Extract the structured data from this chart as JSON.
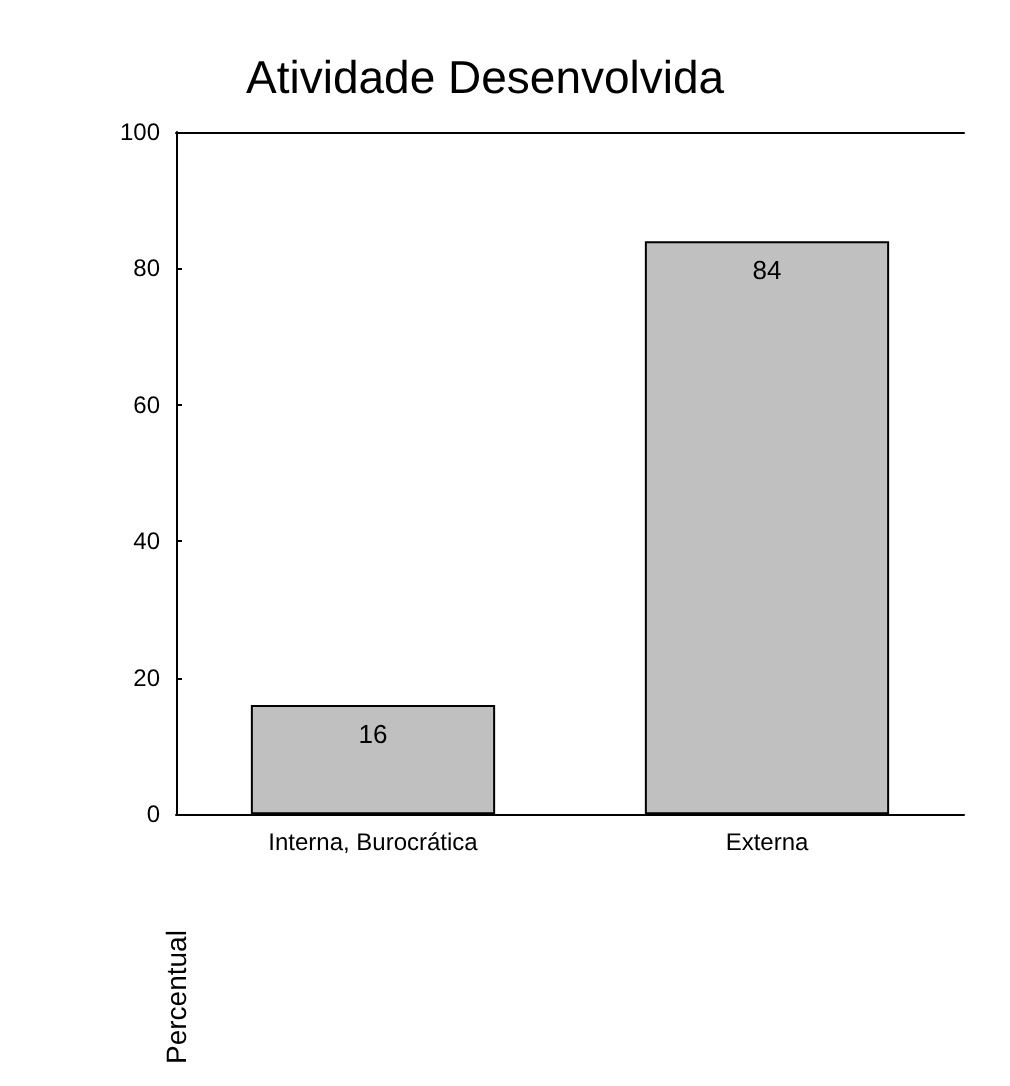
{
  "chart_data": {
    "type": "bar",
    "title": "Atividade Desenvolvida",
    "ylabel": "Percentual",
    "categories": [
      "Interna, Burocrática",
      "Externa"
    ],
    "values": [
      16,
      84
    ],
    "color": "#c0c0c0",
    "ylim": [
      0,
      100
    ],
    "yticks": [
      0,
      20,
      40,
      60,
      80,
      100
    ],
    "data_labels": true
  }
}
